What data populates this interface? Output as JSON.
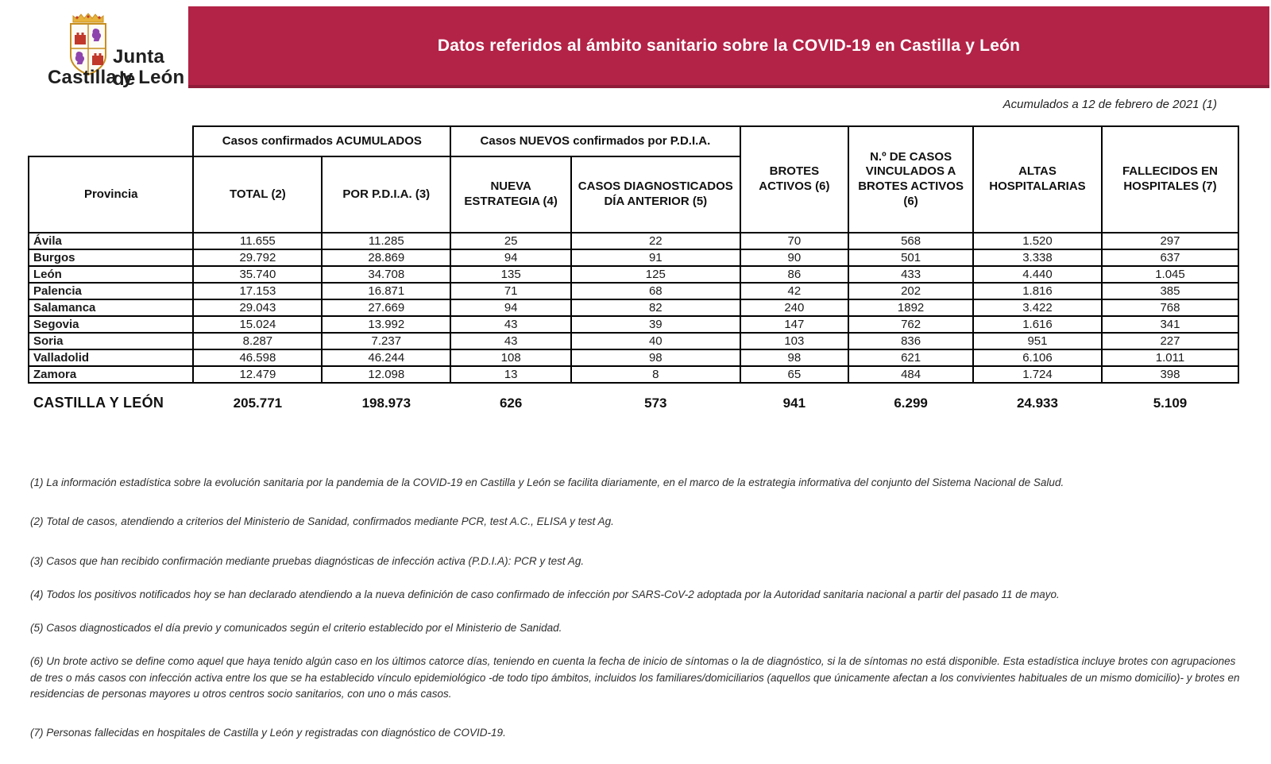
{
  "header": {
    "logo_line1": "Junta de",
    "logo_line2": "Castilla y León",
    "banner_title": "Datos referidos al ámbito sanitario sobre la COVID-19 en Castilla y León",
    "date_note": "Acumulados a 12 de febrero de 2021 (1)",
    "banner_color": "#b32347"
  },
  "table": {
    "group_headers": [
      "Casos confirmados ACUMULADOS",
      "Casos NUEVOS confirmados por P.D.I.A."
    ],
    "columns": [
      "Provincia",
      "TOTAL (2)",
      "POR P.D.I.A. (3)",
      "NUEVA ESTRATEGIA (4)",
      "CASOS DIAGNOSTICADOS DÍA ANTERIOR (5)",
      "BROTES ACTIVOS (6)",
      "N.º DE CASOS VINCULADOS A BROTES ACTIVOS (6)",
      "ALTAS HOSPITALARIAS",
      "FALLECIDOS EN HOSPITALES (7)"
    ],
    "rows": [
      {
        "province": "Ávila",
        "values": [
          "11.655",
          "11.285",
          "25",
          "22",
          "70",
          "568",
          "1.520",
          "297"
        ]
      },
      {
        "province": "Burgos",
        "values": [
          "29.792",
          "28.869",
          "94",
          "91",
          "90",
          "501",
          "3.338",
          "637"
        ]
      },
      {
        "province": "León",
        "values": [
          "35.740",
          "34.708",
          "135",
          "125",
          "86",
          "433",
          "4.440",
          "1.045"
        ]
      },
      {
        "province": "Palencia",
        "values": [
          "17.153",
          "16.871",
          "71",
          "68",
          "42",
          "202",
          "1.816",
          "385"
        ]
      },
      {
        "province": "Salamanca",
        "values": [
          "29.043",
          "27.669",
          "94",
          "82",
          "240",
          "1892",
          "3.422",
          "768"
        ]
      },
      {
        "province": "Segovia",
        "values": [
          "15.024",
          "13.992",
          "43",
          "39",
          "147",
          "762",
          "1.616",
          "341"
        ]
      },
      {
        "province": "Soria",
        "values": [
          "8.287",
          "7.237",
          "43",
          "40",
          "103",
          "836",
          "951",
          "227"
        ]
      },
      {
        "province": "Valladolid",
        "values": [
          "46.598",
          "46.244",
          "108",
          "98",
          "98",
          "621",
          "6.106",
          "1.011"
        ]
      },
      {
        "province": "Zamora",
        "values": [
          "12.479",
          "12.098",
          "13",
          "8",
          "65",
          "484",
          "1.724",
          "398"
        ]
      }
    ],
    "total_row": {
      "label": "CASTILLA Y LEÓN",
      "values": [
        "205.771",
        "198.973",
        "626",
        "573",
        "941",
        "6.299",
        "24.933",
        "5.109"
      ]
    }
  },
  "footnotes": [
    "(1) La información estadística sobre la evolución sanitaria por la pandemia de la COVID-19 en Castilla y León se facilita diariamente, en el marco de la estrategia informativa del conjunto del Sistema Nacional de Salud.",
    "(2) Total de casos, atendiendo a criterios del Ministerio de Sanidad, confirmados mediante PCR, test A.C., ELISA y test Ag.",
    "(3) Casos que han recibido confirmación mediante pruebas diagnósticas de infección activa (P.D.I.A): PCR y test Ag.",
    "(4) Todos los positivos notificados hoy se han declarado atendiendo a la nueva definición de caso confirmado de infección por SARS-CoV-2 adoptada por la Autoridad sanitaria nacional a partir del pasado 11 de mayo.",
    "(5) Casos diagnosticados el día previo y comunicados según el criterio establecido por el Ministerio de Sanidad.",
    "(6) Un brote activo se define como aquel que haya tenido algún caso en los últimos catorce días, teniendo en cuenta la fecha de inicio de síntomas o la de diagnóstico, si la de síntomas no está disponible. Esta estadística incluye brotes con agrupaciones de tres o más casos con infección activa entre los que se ha establecido vínculo epidemiológico -de todo tipo ámbitos, incluidos los familiares/domiciliarios (aquellos que únicamente afectan a los convivientes habituales de un mismo domicilio)- y brotes en residencias de personas mayores u otros centros socio sanitarios, con uno o más casos.",
    "(7) Personas fallecidas en hospitales de Castilla y León y registradas con diagnóstico de COVID-19."
  ]
}
